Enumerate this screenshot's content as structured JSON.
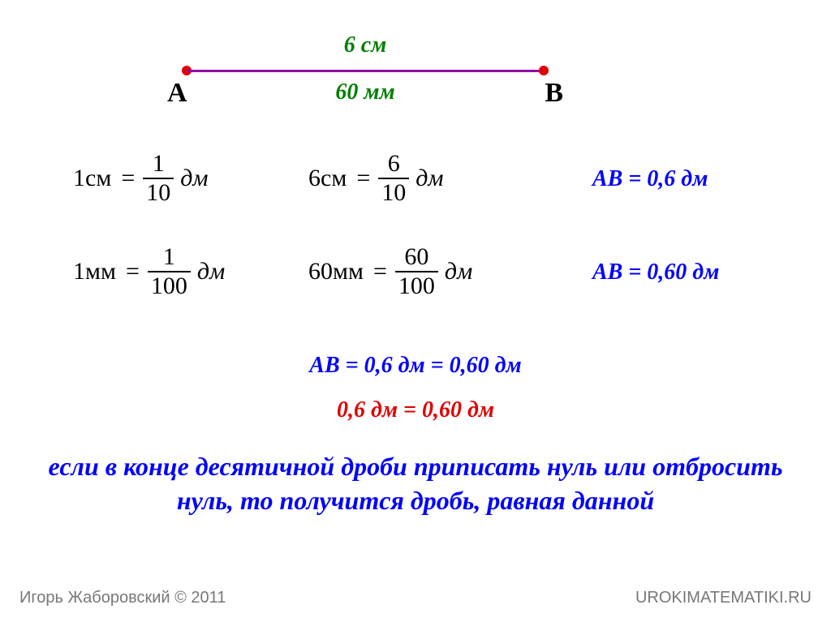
{
  "segment": {
    "top_label": "6 см",
    "bottom_label": "60 мм",
    "point_a": "А",
    "point_b": "В",
    "line_color": "#9400a8",
    "point_color": "#e00000",
    "label_color": "#008000"
  },
  "formulas": {
    "r1c1": {
      "lhs": "1см",
      "num": "1",
      "den": "10",
      "unit": "дм"
    },
    "r1c2": {
      "lhs": "6см",
      "num": "6",
      "den": "10",
      "unit": "дм"
    },
    "r2c1": {
      "lhs": "1мм",
      "num": "1",
      "den": "100",
      "unit": "дм"
    },
    "r2c2": {
      "lhs": "60мм",
      "num": "60",
      "den": "100",
      "unit": "дм"
    }
  },
  "results": {
    "ab1": "АВ = 0,6 дм",
    "ab2": "АВ = 0,60 дм",
    "ab3": "АВ = 0,6 дм = 0,60 дм",
    "red": "0,6 дм = 0,60 дм"
  },
  "statement": "если в конце десятичной дроби приписать нуль или отбросить нуль, то получится дробь, равная данной",
  "footer": {
    "left": "Игорь Жаборовский © 2011",
    "right": "UROKIMATEMATIKI.RU"
  },
  "colors": {
    "blue": "#0000ff",
    "red": "#e00000",
    "green": "#008000",
    "gray": "#777777"
  }
}
